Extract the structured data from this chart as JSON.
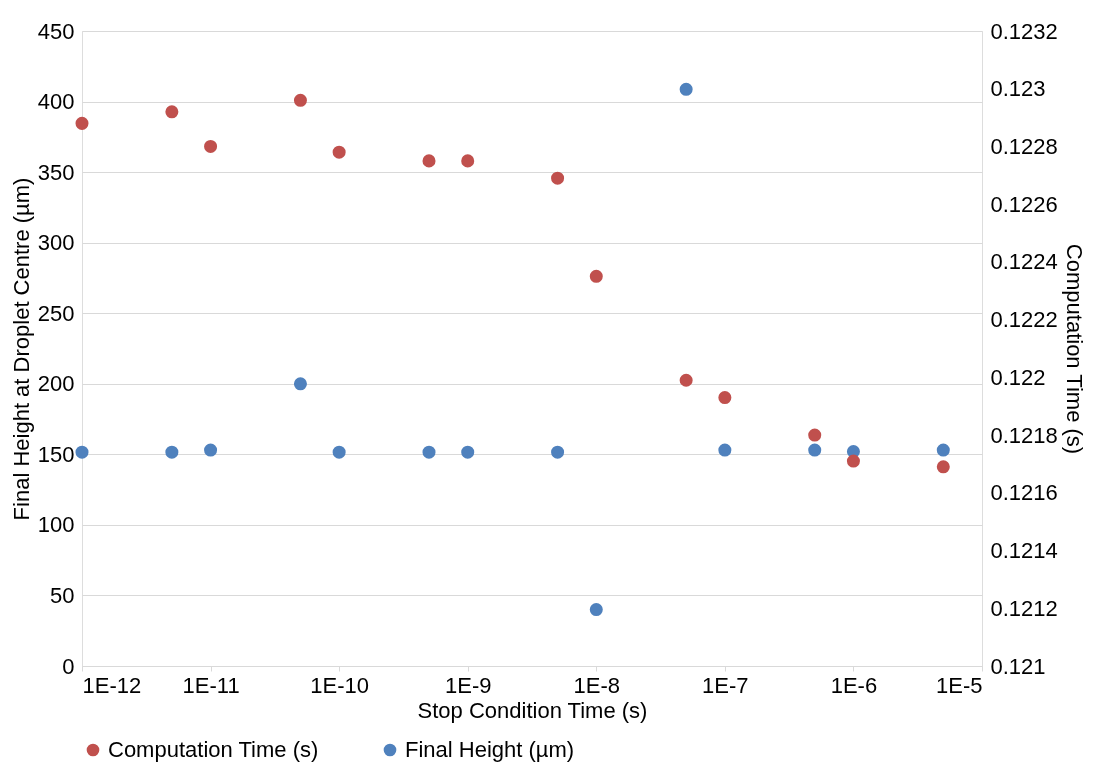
{
  "chart_data": {
    "type": "scatter",
    "xlabel": "Stop Condition Time (s)",
    "ylabel": "Final Height at Droplet Centre (µm)",
    "y2label": "Computation Time (s)",
    "log": "x",
    "grid": "y",
    "legend": "bottom",
    "marker": "circle",
    "xlim": [
      1e-12,
      1e-05
    ],
    "xticks": [
      {
        "value": 1e-12,
        "label": "1E-12"
      },
      {
        "value": 1e-11,
        "label": "1E-11"
      },
      {
        "value": 1e-10,
        "label": "1E-10"
      },
      {
        "value": 1e-09,
        "label": "1E-9"
      },
      {
        "value": 1e-08,
        "label": "1E-8"
      },
      {
        "value": 1e-07,
        "label": "1E-7"
      },
      {
        "value": 1e-06,
        "label": "1E-6"
      },
      {
        "value": 1e-05,
        "label": "1E-5"
      }
    ],
    "ylim": [
      0,
      450
    ],
    "yticks": [
      0,
      50,
      100,
      150,
      200,
      250,
      300,
      350,
      400,
      450
    ],
    "y2lim": [
      0.121,
      0.1232
    ],
    "y2ticks": [
      0.121,
      0.1212,
      0.1214,
      0.1216,
      0.1218,
      0.122,
      0.1222,
      0.1224,
      0.1226,
      0.1228,
      0.123,
      0.1232
    ],
    "x": [
      1e-12,
      5e-12,
      1e-11,
      5e-11,
      1e-10,
      5e-10,
      1e-09,
      5e-09,
      1e-08,
      5e-08,
      1e-07,
      5e-07,
      1e-06,
      5e-06
    ],
    "series": [
      {
        "name": "Computation Time (s)",
        "color": "#c0504d",
        "axis": "y2",
        "values": [
          0.12288,
          0.12292,
          0.1228,
          0.12296,
          0.12278,
          0.12275,
          0.12275,
          0.12269,
          0.12235,
          0.12199,
          0.12193,
          0.1218,
          0.12171,
          0.12169
        ]
      },
      {
        "name": "Final Height (µm)",
        "color": "#4f81bd",
        "axis": "y",
        "values": [
          151.5,
          151.5,
          153,
          200,
          151.5,
          151.5,
          151.5,
          151.5,
          40,
          408.7,
          153,
          153,
          152,
          153
        ]
      }
    ]
  }
}
